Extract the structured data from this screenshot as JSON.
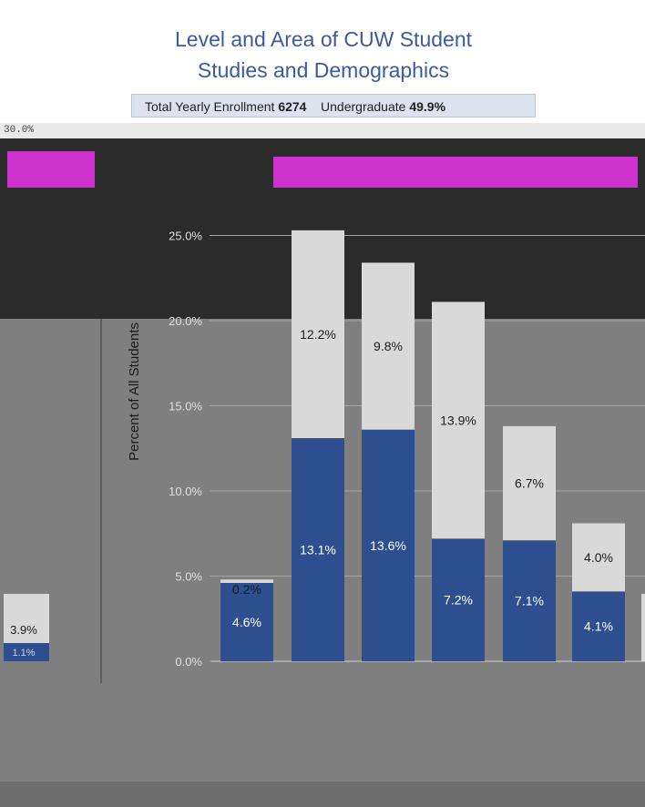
{
  "title_line1": "Level and Area of CUW Student",
  "title_line2": "Studies and Demographics",
  "enrollment": {
    "label_total": "Total Yearly Enrollment",
    "total_value": "6274",
    "label_undergrad": "Undergraduate",
    "undergrad_value": "49.9%"
  },
  "top_strip_label": "30.0%",
  "chart_data": {
    "type": "bar",
    "stacked": true,
    "ylabel": "Percent of All Students",
    "ylim": [
      0,
      35
    ],
    "yticks": [
      "0.0%",
      "5.0%",
      "10.0%",
      "15.0%",
      "20.0%",
      "25.0%"
    ],
    "categories": [
      "",
      "",
      "",
      "",
      "",
      ""
    ],
    "series": [
      {
        "values": [
          4.6,
          13.1,
          13.6,
          7.2,
          7.1,
          4.1
        ],
        "color": "#2e4f8f"
      },
      {
        "values": [
          0.2,
          12.2,
          9.8,
          13.9,
          6.7,
          4.0
        ],
        "color": "#d9d9d9"
      }
    ],
    "bottom_labels": [
      "4.6%",
      "13.1%",
      "13.6%",
      "7.2%",
      "7.1%",
      "4.1%"
    ],
    "top_labels": [
      "0.2%",
      "12.2%",
      "9.8%",
      "13.9%",
      "6.7%",
      "4.0%"
    ],
    "left_partial": {
      "top_label": "3.9%",
      "bottom_label": "1.1%"
    }
  }
}
